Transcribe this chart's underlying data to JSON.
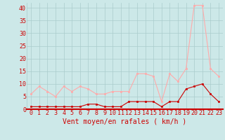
{
  "x": [
    0,
    1,
    2,
    3,
    4,
    5,
    6,
    7,
    8,
    9,
    10,
    11,
    12,
    13,
    14,
    15,
    16,
    17,
    18,
    19,
    20,
    21,
    22,
    23
  ],
  "rafales": [
    6,
    9,
    7,
    5,
    9,
    7,
    9,
    8,
    6,
    6,
    7,
    7,
    7,
    14,
    14,
    13,
    3,
    14,
    11,
    16,
    41,
    41,
    16,
    13
  ],
  "moyen": [
    1,
    1,
    1,
    1,
    1,
    1,
    1,
    2,
    2,
    1,
    1,
    1,
    3,
    3,
    3,
    3,
    1,
    3,
    3,
    8,
    9,
    10,
    6,
    3
  ],
  "rafales_color": "#ffaaaa",
  "moyen_color": "#cc0000",
  "bg_color": "#cce8e8",
  "grid_color": "#aacccc",
  "xlabel": "Vent moyen/en rafales ( km/h )",
  "xlabel_color": "#cc0000",
  "xlabel_fontsize": 7,
  "tick_color": "#cc0000",
  "tick_fontsize": 6,
  "ytick_fontsize": 6,
  "ylim": [
    0,
    42
  ],
  "yticks": [
    0,
    5,
    10,
    15,
    20,
    25,
    30,
    35,
    40
  ],
  "marker_size": 2,
  "line_width": 0.8
}
